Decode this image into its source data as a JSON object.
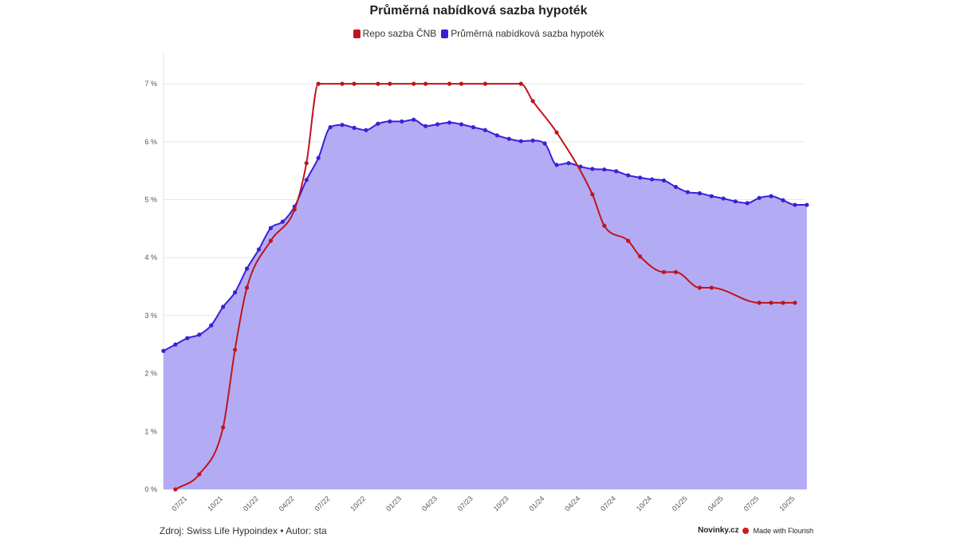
{
  "chart_data": {
    "type": "line",
    "title": "Průměrná nabídková sazba hypoték",
    "legend_position": "top",
    "grid": true,
    "ylim": [
      0,
      7
    ],
    "y_ticks": [
      "0 %",
      "1 %",
      "2 %",
      "3 %",
      "4 %",
      "5 %",
      "6 %",
      "7 %"
    ],
    "x_tick_labels": [
      "07/21",
      "10/21",
      "01/22",
      "04/22",
      "07/22",
      "10/22",
      "01/23",
      "04/23",
      "07/23",
      "10/23",
      "01/24",
      "04/24",
      "07/24",
      "10/24",
      "01/25",
      "04/25",
      "07/25",
      "10/25"
    ],
    "categories": [
      "05/21",
      "06/21",
      "07/21",
      "08/21",
      "09/21",
      "10/21",
      "11/21",
      "12/21",
      "01/22",
      "02/22",
      "03/22",
      "04/22",
      "05/22",
      "06/22",
      "07/22",
      "08/22",
      "09/22",
      "10/22",
      "11/22",
      "12/22",
      "01/23",
      "02/23",
      "03/23",
      "04/23",
      "05/23",
      "06/23",
      "07/23",
      "08/23",
      "09/23",
      "10/23",
      "11/23",
      "12/23",
      "01/24",
      "02/24",
      "03/24",
      "04/24",
      "05/24",
      "06/24",
      "07/24",
      "08/24",
      "09/24",
      "10/24",
      "11/24",
      "12/24",
      "01/25",
      "02/25",
      "03/25",
      "04/25",
      "05/25",
      "06/25",
      "07/25",
      "08/25",
      "09/25",
      "10/25",
      "11/25"
    ],
    "series": [
      {
        "name": "Repo sazba ČNB",
        "color": "#c0141b",
        "area": false,
        "values": [
          null,
          0,
          null,
          0.26,
          null,
          1.07,
          2.41,
          3.48,
          null,
          4.29,
          null,
          4.83,
          5.63,
          7.0,
          null,
          7.0,
          7.0,
          null,
          7.0,
          7.0,
          null,
          7.0,
          7.0,
          null,
          7.0,
          7.0,
          null,
          7.0,
          null,
          null,
          7.0,
          6.7,
          null,
          6.16,
          null,
          null,
          5.09,
          4.55,
          null,
          4.29,
          4.02,
          null,
          3.75,
          3.75,
          null,
          3.48,
          3.48,
          null,
          null,
          null,
          3.22,
          3.22,
          3.22,
          3.22,
          null
        ]
      },
      {
        "name": "Průměrná nabídková sazba hypoték",
        "color": "#3a1fd9",
        "fill": "#b3acf5",
        "area": true,
        "values": [
          2.39,
          2.5,
          2.61,
          2.67,
          2.83,
          3.15,
          3.4,
          3.81,
          4.14,
          4.51,
          4.62,
          4.88,
          5.34,
          5.72,
          6.25,
          6.29,
          6.24,
          6.2,
          6.31,
          6.35,
          6.35,
          6.38,
          6.27,
          6.3,
          6.33,
          6.3,
          6.25,
          6.2,
          6.11,
          6.05,
          6.01,
          6.02,
          5.97,
          5.6,
          5.63,
          5.57,
          5.53,
          5.52,
          5.49,
          5.42,
          5.38,
          5.35,
          5.33,
          5.22,
          5.13,
          5.11,
          5.06,
          5.02,
          4.97,
          4.94,
          5.03,
          5.06,
          4.99,
          4.91,
          4.91
        ]
      }
    ]
  },
  "footer": {
    "source": "Zdroj: Swiss Life Hypoindex • Autor: sta",
    "brand": "Novinky.cz",
    "made_with": "Made with Flourish"
  }
}
